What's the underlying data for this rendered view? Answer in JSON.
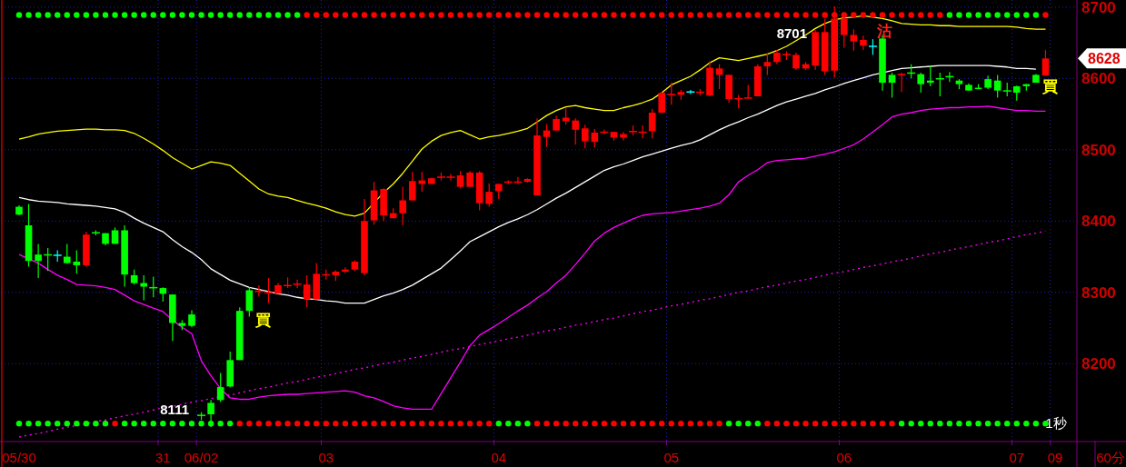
{
  "chart_data": {
    "type": "candlestick",
    "categories": [
      "05/30",
      null,
      null,
      null,
      null,
      null,
      null,
      null,
      null,
      null,
      null,
      null,
      null,
      null,
      null,
      "31",
      null,
      null,
      null,
      "06/02",
      null,
      null,
      null,
      null,
      null,
      null,
      null,
      null,
      null,
      null,
      null,
      null,
      "03",
      null,
      null,
      null,
      null,
      null,
      null,
      null,
      null,
      null,
      null,
      null,
      null,
      null,
      null,
      null,
      null,
      null,
      "04",
      null,
      null,
      null,
      null,
      null,
      null,
      null,
      null,
      null,
      null,
      null,
      null,
      null,
      null,
      null,
      null,
      null,
      "05",
      null,
      null,
      null,
      null,
      null,
      null,
      null,
      null,
      null,
      null,
      null,
      null,
      null,
      null,
      null,
      null,
      null,
      "06",
      null,
      null,
      null,
      null,
      null,
      null,
      null,
      null,
      null,
      null,
      null,
      null,
      null,
      null,
      null,
      null,
      null,
      "07",
      null,
      null,
      null,
      "09"
    ],
    "ohlc": [
      [
        8420,
        8422,
        8408,
        8409
      ],
      [
        8394,
        8424,
        8336,
        8344
      ],
      [
        8353,
        8368,
        8320,
        8344
      ],
      [
        8353,
        8362,
        8330,
        8352
      ],
      [
        8352,
        8359,
        8343,
        8352
      ],
      [
        8350,
        8368,
        8340,
        8341
      ],
      [
        8343,
        8359,
        8326,
        8338
      ],
      [
        8338,
        8385,
        8336,
        8381
      ],
      [
        8384,
        8387,
        8380,
        8383
      ],
      [
        8383,
        8383,
        8366,
        8368
      ],
      [
        8387,
        8391,
        8368,
        8368
      ],
      [
        8387,
        8394,
        8308,
        8325
      ],
      [
        8324,
        8332,
        8311,
        8313
      ],
      [
        8313,
        8324,
        8289,
        8308
      ],
      [
        8307,
        8322,
        8293,
        8306
      ],
      [
        8306,
        8307,
        8287,
        8298
      ],
      [
        8297,
        8297,
        8232,
        8257
      ],
      [
        8257,
        8261,
        8247,
        8253
      ],
      [
        8269,
        8275,
        8251,
        8253
      ],
      [
        8128,
        8132,
        8121,
        8127
      ],
      [
        8145,
        8149,
        8111,
        8129
      ],
      [
        8167,
        8187,
        8146,
        8149
      ],
      [
        8205,
        8217,
        8167,
        8168
      ],
      [
        8274,
        8279,
        8205,
        8205
      ],
      [
        8303,
        8307,
        8266,
        8274
      ],
      [
        8301,
        8310,
        8294,
        8302
      ],
      [
        8299,
        8320,
        8285,
        8300
      ],
      [
        8298,
        8313,
        8298,
        8310
      ],
      [
        8309,
        8321,
        8306,
        8310
      ],
      [
        8311,
        8318,
        8306,
        8312
      ],
      [
        8290,
        8324,
        8279,
        8311
      ],
      [
        8290,
        8341,
        8290,
        8326
      ],
      [
        8324,
        8332,
        8318,
        8325
      ],
      [
        8324,
        8331,
        8316,
        8329
      ],
      [
        8329,
        8335,
        8327,
        8332
      ],
      [
        8332,
        8345,
        8330,
        8343
      ],
      [
        8327,
        8431,
        8324,
        8400
      ],
      [
        8401,
        8455,
        8395,
        8443
      ],
      [
        8408,
        8446,
        8400,
        8445
      ],
      [
        8404,
        8418,
        8404,
        8411
      ],
      [
        8411,
        8448,
        8394,
        8429
      ],
      [
        8429,
        8469,
        8429,
        8456
      ],
      [
        8452,
        8469,
        8441,
        8457
      ],
      [
        8452,
        8461,
        8452,
        8460
      ],
      [
        8461,
        8468,
        8457,
        8462
      ],
      [
        8461,
        8466,
        8457,
        8462
      ],
      [
        8448,
        8470,
        8446,
        8464
      ],
      [
        8448,
        8470,
        8448,
        8468
      ],
      [
        8425,
        8470,
        8415,
        8468
      ],
      [
        8424,
        8453,
        8420,
        8441
      ],
      [
        8442,
        8452,
        8431,
        8452
      ],
      [
        8454,
        8457,
        8452,
        8455
      ],
      [
        8454,
        8462,
        8452,
        8455
      ],
      [
        8455,
        8460,
        8454,
        8459
      ],
      [
        8436,
        8544,
        8436,
        8520
      ],
      [
        8518,
        8536,
        8504,
        8527
      ],
      [
        8527,
        8548,
        8527,
        8543
      ],
      [
        8540,
        8558,
        8535,
        8545
      ],
      [
        8528,
        8544,
        8507,
        8541
      ],
      [
        8512,
        8535,
        8502,
        8530
      ],
      [
        8511,
        8529,
        8503,
        8524
      ],
      [
        8524,
        8528,
        8522,
        8525
      ],
      [
        8517,
        8525,
        8513,
        8525
      ],
      [
        8517,
        8525,
        8513,
        8522
      ],
      [
        8525,
        8534,
        8520,
        8526
      ],
      [
        8524,
        8534,
        8516,
        8525
      ],
      [
        8526,
        8557,
        8516,
        8552
      ],
      [
        8552,
        8581,
        8552,
        8580
      ],
      [
        8577,
        8594,
        8563,
        8578
      ],
      [
        8577,
        8584,
        8570,
        8581
      ],
      [
        8581,
        8584,
        8578,
        8581
      ],
      [
        8580,
        8585,
        8576,
        8581
      ],
      [
        8576,
        8624,
        8575,
        8615
      ],
      [
        8605,
        8620,
        8585,
        8614
      ],
      [
        8571,
        8605,
        8566,
        8605
      ],
      [
        8571,
        8577,
        8558,
        8572
      ],
      [
        8572,
        8591,
        8572,
        8573
      ],
      [
        8575,
        8620,
        8575,
        8617
      ],
      [
        8617,
        8636,
        8605,
        8623
      ],
      [
        8623,
        8640,
        8620,
        8636
      ],
      [
        8633,
        8638,
        8626,
        8634
      ],
      [
        8614,
        8636,
        8612,
        8633
      ],
      [
        8614,
        8623,
        8612,
        8620
      ],
      [
        8618,
        8668,
        8612,
        8665
      ],
      [
        8610,
        8684,
        8605,
        8665
      ],
      [
        8611,
        8701,
        8601,
        8684
      ],
      [
        8661,
        8688,
        8643,
        8684
      ],
      [
        8652,
        8669,
        8639,
        8661
      ],
      [
        8646,
        8660,
        8640,
        8654
      ],
      [
        8645,
        8655,
        8633,
        8645
      ],
      [
        8656,
        8661,
        8583,
        8594
      ],
      [
        8605,
        8608,
        8573,
        8594
      ],
      [
        8605,
        8608,
        8581,
        8606
      ],
      [
        8608,
        8620,
        8600,
        8607
      ],
      [
        8606,
        8608,
        8580,
        8592
      ],
      [
        8597,
        8618,
        8589,
        8594
      ],
      [
        8600,
        8608,
        8575,
        8599
      ],
      [
        8603,
        8609,
        8595,
        8602
      ],
      [
        8597,
        8599,
        8585,
        8592
      ],
      [
        8591,
        8593,
        8583,
        8583
      ],
      [
        8587,
        8592,
        8585,
        8585
      ],
      [
        8599,
        8604,
        8585,
        8587
      ],
      [
        8597,
        8605,
        8573,
        8583
      ],
      [
        8583,
        8594,
        8575,
        8582
      ],
      [
        8589,
        8590,
        8569,
        8580
      ],
      [
        8592,
        8592,
        8583,
        8589
      ],
      [
        8605,
        8606,
        8594,
        8594
      ],
      [
        8604,
        8640,
        8604,
        8628
      ],
      null
    ],
    "colors": [
      "#00ff00",
      "#00ff00",
      "#00ff00",
      "#00ff00",
      "#00ffff",
      "#00ff00",
      "#00ff00",
      "#ff0000",
      "#00ff00",
      "#00ff00",
      "#00ff00",
      "#00ff00",
      "#00ff00",
      "#00ff00",
      "#00ff00",
      "#00ff00",
      "#00ff00",
      "#00ff00",
      "#00ff00",
      "#00ff00",
      "#00ff00",
      "#00ff00",
      "#00ff00",
      "#00ff00",
      "#00ff00",
      "#ff0000",
      "#ff0000",
      "#ff0000",
      "#ff0000",
      "#ff0000",
      "#ff0000",
      "#ff0000",
      "#ff0000",
      "#ff0000",
      "#ff0000",
      "#ff0000",
      "#ff0000",
      "#ff0000",
      "#ff0000",
      "#ff0000",
      "#ff0000",
      "#ff0000",
      "#ff0000",
      "#ff0000",
      "#ff0000",
      "#ff0000",
      "#ff0000",
      "#ff0000",
      "#ff0000",
      "#ff0000",
      "#ff0000",
      "#ff0000",
      "#ff0000",
      "#ff0000",
      "#ff0000",
      "#ff0000",
      "#ff0000",
      "#ff0000",
      "#ff0000",
      "#ff0000",
      "#ff0000",
      "#ff0000",
      "#ff0000",
      "#ff0000",
      "#ff0000",
      "#ff0000",
      "#ff0000",
      "#ff0000",
      "#ff0000",
      "#ff0000",
      "#00ffff",
      "#ff0000",
      "#ff0000",
      "#ff0000",
      "#ff0000",
      "#ff0000",
      "#ff0000",
      "#ff0000",
      "#ff0000",
      "#ff0000",
      "#ff0000",
      "#ff0000",
      "#ff0000",
      "#ff0000",
      "#ff0000",
      "#ff0000",
      "#ff0000",
      "#ff0000",
      "#ff0000",
      "#00ffff",
      "#00ff00",
      "#00ff00",
      "#ff0000",
      "#00ff00",
      "#00ff00",
      "#00ff00",
      "#00ff00",
      "#00ff00",
      "#00ff00",
      "#00ff00",
      "#00ff00",
      "#00ff00",
      "#00ff00",
      "#00ff00",
      "#00ff00",
      "#00ff00",
      "#00ff00",
      "#ff0000",
      null
    ],
    "series": [
      {
        "type": "line",
        "color": "#ffff00",
        "values": [
          8515,
          8518,
          8522,
          8524,
          8526,
          8527,
          8528,
          8529,
          8529,
          8528,
          8528,
          8527,
          8523,
          8516,
          8508,
          8499,
          8489,
          8481,
          8473,
          8478,
          8483,
          8481,
          8478,
          8467,
          8456,
          8445,
          8438,
          8435,
          8433,
          8429,
          8425,
          8422,
          8418,
          8413,
          8409,
          8407,
          8411,
          null,
          8440,
          8452,
          8467,
          8484,
          8501,
          8512,
          8520,
          8524,
          8527,
          8521,
          8515,
          8518,
          8520,
          8523,
          8526,
          8530,
          8539,
          8548,
          8555,
          8560,
          8562,
          8559,
          8557,
          8555,
          8555,
          8559,
          8562,
          8566,
          8571,
          8580,
          8591,
          8597,
          8603,
          8612,
          8622,
          8629,
          8627,
          8625,
          8628,
          8631,
          8634,
          8639,
          8645,
          8653,
          8661,
          8670,
          8677,
          8682,
          8685,
          8686,
          8688,
          8686,
          8684,
          8681,
          8677,
          8676,
          8675,
          8675,
          8674,
          8674,
          8673,
          8673,
          8673,
          8673,
          8673,
          8673,
          8672,
          8670,
          8669,
          8669,
          null
        ]
      },
      {
        "type": "line",
        "color": "#ffffff",
        "values": [
          8433,
          8430,
          8428,
          8427,
          8426,
          8424,
          8423,
          8422,
          8421,
          8419,
          8417,
          8412,
          8404,
          8397,
          8391,
          8385,
          8374,
          8364,
          8356,
          8346,
          8333,
          8325,
          8317,
          8312,
          8307,
          8304,
          8301,
          8298,
          8296,
          8293,
          8291,
          8290,
          8288,
          8287,
          8285,
          8285,
          8285,
          8290,
          8295,
          8299,
          8304,
          8310,
          8318,
          8326,
          8334,
          8346,
          8358,
          8371,
          8378,
          8385,
          8392,
          8398,
          8403,
          8409,
          8416,
          8424,
          8432,
          8439,
          8447,
          8455,
          8463,
          8471,
          8476,
          8480,
          8485,
          8490,
          8494,
          8498,
          8502,
          8506,
          8509,
          8514,
          8521,
          8528,
          8534,
          8539,
          8545,
          8550,
          8556,
          8562,
          8567,
          8571,
          8575,
          8579,
          8584,
          8588,
          8593,
          8597,
          8601,
          8605,
          8608,
          8611,
          8614,
          8615,
          8616,
          8617,
          8618,
          8618,
          8618,
          8618,
          8618,
          8618,
          8617,
          8616,
          8614,
          8614,
          8613,
          null,
          null
        ]
      },
      {
        "type": "line",
        "color": "#ff00ff",
        "values": [
          8353,
          null,
          8341,
          8332,
          8324,
          8318,
          8311,
          8310,
          8309,
          8307,
          8304,
          8296,
          8288,
          8283,
          8278,
          8273,
          8261,
          8251,
          8242,
          8204,
          8183,
          8165,
          8152,
          8150,
          8150,
          8153,
          8155,
          8156,
          8157,
          8157,
          8158,
          8159,
          8160,
          8161,
          8162,
          8160,
          8155,
          8152,
          8147,
          8141,
          8138,
          8136,
          8136,
          8136,
          8158,
          8180,
          8202,
          8225,
          8240,
          8248,
          8256,
          8265,
          8274,
          8282,
          8292,
          8301,
          8313,
          8324,
          8339,
          8355,
          8372,
          8383,
          8391,
          8397,
          8403,
          8408,
          8410,
          8411,
          8412,
          8414,
          8416,
          8418,
          8421,
          8425,
          8437,
          8455,
          8464,
          8472,
          8482,
          8485,
          8486,
          8487,
          8488,
          8491,
          8494,
          8497,
          8502,
          8507,
          8515,
          8525,
          8535,
          8546,
          8550,
          8552,
          8555,
          8557,
          8558,
          8559,
          8559,
          8560,
          8560,
          8561,
          8559,
          8557,
          8555,
          8555,
          8554,
          8554,
          null
        ]
      },
      {
        "type": "line",
        "color": "#ff00ff",
        "line_style": "dotted",
        "values": [
          8097,
          8100,
          8102,
          8105,
          8108,
          8111,
          8113,
          8116,
          8119,
          8121,
          8124,
          8127,
          8129,
          8132,
          8135,
          8138,
          8140,
          8143,
          8146,
          8148,
          8151,
          8154,
          8156,
          8159,
          8162,
          8165,
          8167,
          8170,
          8173,
          8175,
          8178,
          8181,
          8183,
          8186,
          8189,
          8192,
          8194,
          8197,
          8200,
          8202,
          8205,
          8208,
          8210,
          8213,
          8216,
          8219,
          8221,
          8224,
          8227,
          8229,
          8232,
          8235,
          8237,
          8240,
          8243,
          8246,
          8248,
          8251,
          8254,
          8256,
          8259,
          8262,
          8264,
          8267,
          8270,
          8273,
          8275,
          8278,
          8281,
          8283,
          8286,
          8289,
          8291,
          8294,
          8297,
          8300,
          8302,
          8305,
          8308,
          8310,
          8313,
          8316,
          8318,
          8321,
          8324,
          8327,
          8329,
          8332,
          8335,
          8337,
          8340,
          8343,
          8345,
          8348,
          8351,
          8354,
          8356,
          8359,
          8362,
          8364,
          8367,
          8370,
          8372,
          8375,
          8378,
          8381,
          8383,
          8386,
          null
        ]
      },
      {
        "type": "scatter",
        "marker": "circle",
        "values": [
          8689,
          8689,
          8689,
          8689,
          8689,
          8689,
          8689,
          8689,
          8689,
          8689,
          8689,
          8689,
          8689,
          8689,
          8689,
          8689,
          8689,
          8689,
          8689,
          8689,
          8689,
          8689,
          8689,
          8689,
          8689,
          8689,
          8689,
          8689,
          8689,
          8689,
          8689,
          8689,
          8689,
          8689,
          8689,
          8689,
          8689,
          8689,
          8689,
          8689,
          8689,
          8689,
          8689,
          8689,
          8689,
          8689,
          8689,
          8689,
          8689,
          8689,
          8689,
          8689,
          8689,
          8689,
          8689,
          8689,
          8689,
          8689,
          8689,
          8689,
          8689,
          8689,
          8689,
          8689,
          8689,
          8689,
          8689,
          8689,
          8689,
          8689,
          8689,
          8689,
          8689,
          8689,
          8689,
          8689,
          8689,
          8689,
          8689,
          8689,
          8689,
          8689,
          8689,
          8689,
          8689,
          8689,
          8689,
          8689,
          8689,
          8689,
          8689,
          8689,
          8689,
          8689,
          8689,
          8689,
          8689,
          8689,
          8689,
          8689,
          8689,
          8689,
          8689,
          8689,
          8689,
          8689,
          8689,
          8689,
          null
        ],
        "colors": [
          "#00ff00",
          "#00ff00",
          "#00ff00",
          "#00ff00",
          "#00ff00",
          "#00ff00",
          "#00ff00",
          "#00ff00",
          "#00ff00",
          "#00ff00",
          "#00ff00",
          "#00ff00",
          "#00ff00",
          "#00ff00",
          "#00ff00",
          "#00ff00",
          "#00ff00",
          "#00ff00",
          "#00ff00",
          "#00ff00",
          "#00ff00",
          "#00ff00",
          "#00ff00",
          "#00ff00",
          "#00ff00",
          "#00ff00",
          "#00ff00",
          "#00ff00",
          "#00ff00",
          "#00ff00",
          "#ff0000",
          "#ff0000",
          "#ff0000",
          "#ff0000",
          "#ff0000",
          "#ff0000",
          "#ff0000",
          "#ff0000",
          "#ff0000",
          "#ff0000",
          "#ff0000",
          "#ff0000",
          "#ff0000",
          "#ff0000",
          "#ff0000",
          "#ff0000",
          "#ff0000",
          "#ff0000",
          "#ff0000",
          "#ff0000",
          "#ff0000",
          "#ff0000",
          "#ff0000",
          "#ff0000",
          "#ff0000",
          "#ff0000",
          "#ff0000",
          "#ff0000",
          "#ff0000",
          "#ff0000",
          "#ff0000",
          "#ff0000",
          "#ff0000",
          "#ff0000",
          "#ff0000",
          "#ff0000",
          "#ff0000",
          "#ff0000",
          "#ff0000",
          "#ff0000",
          "#ff0000",
          "#ff0000",
          "#ff0000",
          "#ff0000",
          "#ff0000",
          "#ff0000",
          "#ff0000",
          "#ff0000",
          "#ff0000",
          "#ff0000",
          "#ff0000",
          "#ff0000",
          "#ff0000",
          "#ff0000",
          "#ff0000",
          "#ff0000",
          "#ff0000",
          "#ff0000",
          "#ff0000",
          "#ff0000",
          "#ff0000",
          "#ff0000",
          "#ff0000",
          "#ff0000",
          "#ff0000",
          "#ff0000",
          "#ff0000",
          "#00ff00",
          "#00ff00",
          "#00ff00",
          "#00ff00",
          "#00ff00",
          "#00ff00",
          "#00ff00",
          "#00ff00",
          "#00ff00",
          "#00ff00",
          "#ff0000",
          null
        ]
      },
      {
        "type": "scatter",
        "marker": "circle",
        "values": [
          8116,
          8116,
          8116,
          8116,
          8116,
          8116,
          8116,
          8116,
          8116,
          8116,
          8116,
          8116,
          8116,
          8116,
          8116,
          8116,
          8116,
          8116,
          8116,
          8116,
          8116,
          8116,
          8116,
          8116,
          8116,
          8116,
          8116,
          8116,
          8116,
          8116,
          8116,
          8116,
          8116,
          8116,
          8116,
          8116,
          8116,
          8116,
          8116,
          8116,
          8116,
          8116,
          8116,
          8116,
          8116,
          8116,
          8116,
          8116,
          8116,
          8116,
          8116,
          8116,
          8116,
          8116,
          8116,
          8116,
          8116,
          8116,
          8116,
          8116,
          8116,
          8116,
          8116,
          8116,
          8116,
          8116,
          8116,
          8116,
          8116,
          8116,
          8116,
          8116,
          8116,
          8116,
          8116,
          8116,
          8116,
          8116,
          8116,
          8116,
          8116,
          8116,
          8116,
          8116,
          8116,
          8116,
          8116,
          8116,
          8116,
          8116,
          8116,
          8116,
          8116,
          8116,
          8116,
          8116,
          8116,
          8116,
          8116,
          8116,
          8116,
          8116,
          8116,
          8116,
          8116,
          8116,
          8116,
          8116,
          null
        ],
        "colors": [
          "#00ff00",
          "#00ff00",
          "#00ff00",
          "#00ff00",
          "#00ff00",
          "#00ff00",
          "#00ff00",
          "#00ff00",
          "#00ff00",
          "#00ff00",
          "#ff0000",
          "#00ff00",
          "#00ff00",
          "#00ff00",
          "#00ff00",
          "#00ff00",
          "#00ff00",
          "#00ff00",
          "#00ff00",
          "#00ff00",
          "#00ff00",
          "#00ff00",
          "#00ff00",
          "#ff0000",
          "#ff0000",
          "#ff0000",
          "#ff0000",
          "#ff0000",
          "#ff0000",
          "#ff0000",
          "#ff0000",
          "#ff0000",
          "#ff0000",
          "#ff0000",
          "#ff0000",
          "#ff0000",
          "#ff0000",
          "#ff0000",
          "#ff0000",
          "#ff0000",
          "#ff0000",
          "#ff0000",
          "#ff0000",
          "#ff0000",
          "#ff0000",
          "#ff0000",
          "#ff0000",
          "#ff0000",
          "#ff0000",
          "#ff0000",
          "#00ff00",
          "#00ff00",
          "#00ff00",
          "#00ff00",
          "#ff0000",
          "#ff0000",
          "#ff0000",
          "#ff0000",
          "#ff0000",
          "#ff0000",
          "#ff0000",
          "#ff0000",
          "#ff0000",
          "#ff0000",
          "#ff0000",
          "#ff0000",
          "#ff0000",
          "#ff0000",
          "#ff0000",
          "#ff0000",
          "#ff0000",
          "#ff0000",
          "#ff0000",
          "#ff0000",
          "#00ff00",
          "#00ff00",
          "#00ff00",
          "#00ff00",
          "#ff0000",
          "#ff0000",
          "#ff0000",
          "#ff0000",
          "#ff0000",
          "#ff0000",
          "#ff0000",
          "#ff0000",
          "#ff0000",
          "#ff0000",
          "#ff0000",
          "#ff0000",
          "#ff0000",
          "#ff0000",
          "#00ff00",
          "#00ff00",
          "#00ff00",
          "#00ff00",
          "#00ff00",
          "#00ff00",
          "#00ff00",
          "#00ff00",
          "#00ff00",
          "#00ff00",
          "#00ff00",
          "#00ff00",
          "#00ff00",
          "#00ff00",
          "#00ff00",
          "#00ff00",
          null
        ]
      }
    ],
    "ylim": [
      8092,
      8710
    ],
    "yticks": [
      8200,
      8300,
      8400,
      8500,
      8600,
      8700,
      {
        "value": 8628,
        "label": "8628"
      }
    ],
    "grid": true,
    "annotations": [
      "8701",
      "8111",
      "買",
      "沽",
      "買",
      "1秒",
      "60分"
    ]
  }
}
